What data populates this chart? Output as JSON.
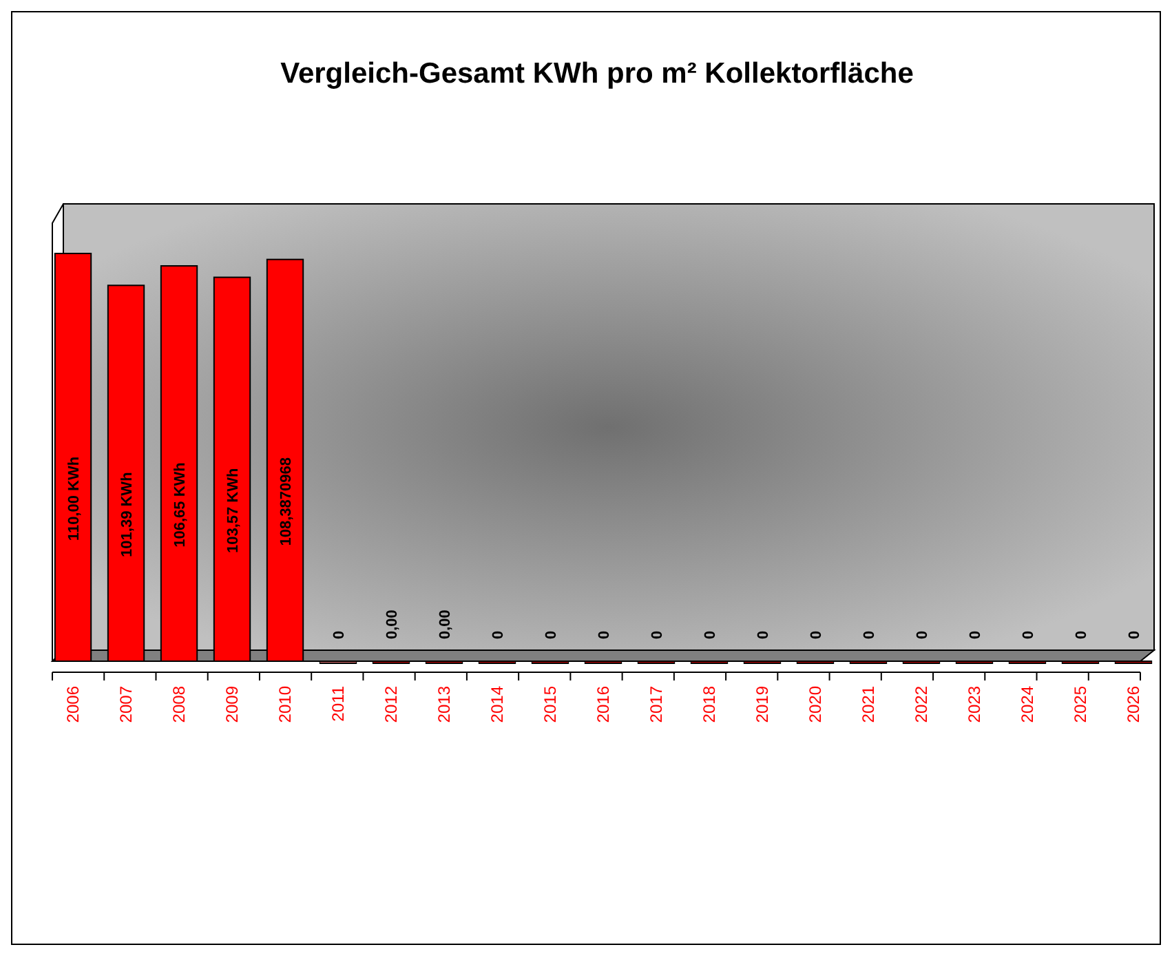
{
  "chart_data": {
    "type": "bar",
    "title": "Vergleich-Gesamt KWh pro m² Kollektorfläche",
    "categories": [
      "2006",
      "2007",
      "2008",
      "2009",
      "2010",
      "2011",
      "2012",
      "2013",
      "2014",
      "2015",
      "2016",
      "2017",
      "2018",
      "2019",
      "2020",
      "2021",
      "2022",
      "2023",
      "2024",
      "2025",
      "2026"
    ],
    "values": [
      110,
      101.39,
      106.65,
      103.57,
      108.3870968,
      0,
      0,
      0,
      0,
      0,
      0,
      0,
      0,
      0,
      0,
      0,
      0,
      0,
      0,
      0,
      0
    ],
    "colors": [
      "#ff0000",
      "#ff0000",
      "#ff0000",
      "#ff0000",
      "#ff0000",
      "#e07070",
      "#cc0000",
      "#cc0000",
      "#cc0000",
      "#cc0000",
      "#cc0000",
      "#cc0000",
      "#cc0000",
      "#cc0000",
      "#cc0000",
      "#cc0000",
      "#cc0000",
      "#cc0000",
      "#cc0000",
      "#cc0000",
      "#cc0000"
    ],
    "value_labels": [
      "110,00 KWh",
      "101,39 KWh",
      "106,65 KWh",
      "103,57 KWh",
      "108,3870968",
      "0",
      "0,00",
      "0,00",
      "0",
      "0",
      "0",
      "0",
      "0",
      "0",
      "0",
      "0",
      "0",
      "0",
      "0",
      "0",
      "0"
    ],
    "stacked": false
  }
}
